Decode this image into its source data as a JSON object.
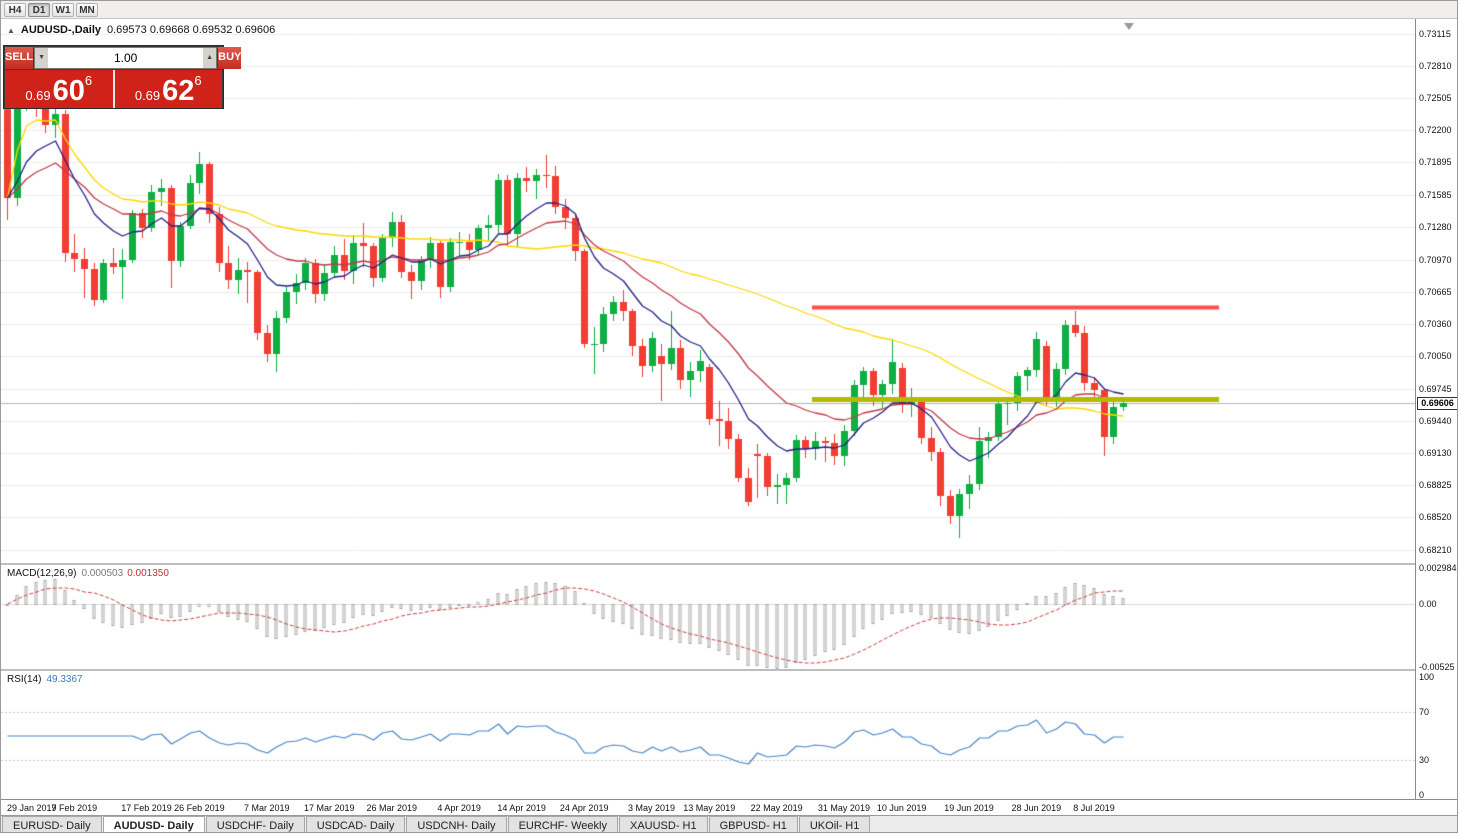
{
  "toolbar": {
    "timeframes": [
      "H4",
      "D1",
      "W1",
      "MN"
    ],
    "active": "D1"
  },
  "chart_header": {
    "symbol": "AUDUSD-,Daily",
    "ohlc": "0.69573 0.69668 0.69532 0.69606"
  },
  "icons": {
    "panel_toggle": "▲",
    "volume_down": "▼",
    "volume_up": "▲"
  },
  "trade_panel": {
    "sell_label": "SELL",
    "buy_label": "BUY",
    "volume": "1.00",
    "sell_price": {
      "prefix": "0.69",
      "pips": "60",
      "pipette": "6"
    },
    "buy_price": {
      "prefix": "0.69",
      "pips": "62",
      "pipette": "6"
    }
  },
  "price_axis": [
    "0.73115",
    "0.72810",
    "0.72505",
    "0.72200",
    "0.71895",
    "0.71585",
    "0.71280",
    "0.70970",
    "0.70665",
    "0.70360",
    "0.70050",
    "0.69745",
    "0.69440",
    "0.69130",
    "0.68825",
    "0.68520",
    "0.68210"
  ],
  "macd": {
    "name": "MACD(12,26,9)",
    "value": "0.000503",
    "signal_value": "0.001350",
    "axis": [
      "0.002984",
      "0.00",
      "-0.00525"
    ],
    "histogram_color": "#a9a9a9",
    "signal_color": "#cc4444",
    "params": {
      "fast": 12,
      "slow": 26,
      "signal": 9
    }
  },
  "rsi": {
    "name": "RSI(14)",
    "value": "49.3367",
    "period": 14,
    "axis": [
      "100",
      "70",
      "30",
      "0"
    ],
    "levels": [
      70,
      30
    ],
    "line_color": "#4a86c8"
  },
  "date_axis": [
    {
      "label": "29 Jan 2019",
      "i": 0
    },
    {
      "label": "7 Feb 2019",
      "i": 7
    },
    {
      "label": "17 Feb 2019",
      "i": 14.5
    },
    {
      "label": "26 Feb 2019",
      "i": 20
    },
    {
      "label": "7 Mar 2019",
      "i": 27
    },
    {
      "label": "17 Mar 2019",
      "i": 33.5
    },
    {
      "label": "26 Mar 2019",
      "i": 40
    },
    {
      "label": "4 Apr 2019",
      "i": 47
    },
    {
      "label": "14 Apr 2019",
      "i": 53.5
    },
    {
      "label": "24 Apr 2019",
      "i": 60
    },
    {
      "label": "3 May 2019",
      "i": 67
    },
    {
      "label": "13 May 2019",
      "i": 73
    },
    {
      "label": "22 May 2019",
      "i": 80
    },
    {
      "label": "31 May 2019",
      "i": 87
    },
    {
      "label": "10 Jun 2019",
      "i": 93
    },
    {
      "label": "19 Jun 2019",
      "i": 100
    },
    {
      "label": "28 Jun 2019",
      "i": 107
    },
    {
      "label": "8 Jul 2019",
      "i": 113
    }
  ],
  "tabs": [
    {
      "label": "EURUSD- Daily",
      "active": false
    },
    {
      "label": "AUDUSD- Daily",
      "active": true
    },
    {
      "label": "USDCHF- Daily",
      "active": false
    },
    {
      "label": "USDCAD- Daily",
      "active": false
    },
    {
      "label": "USDCNH- Daily",
      "active": false
    },
    {
      "label": "EURCHF- Weekly",
      "active": false
    },
    {
      "label": "XAUUSD- H1",
      "active": false
    },
    {
      "label": "GBPUSD- H1",
      "active": false
    },
    {
      "label": "UKOil- H1",
      "active": false
    }
  ],
  "chart_data": {
    "type": "candlestick",
    "symbol": "AUDUSD",
    "period": "Daily",
    "current_price": "0.69606",
    "ylim": [
      0.6821,
      0.73115
    ],
    "colors": {
      "up": "#0fae43",
      "down": "#f23d32",
      "grid": "#ededed",
      "current_price_line": "#b5b5b5"
    },
    "moving_averages": [
      {
        "method": "SMA",
        "period": 50,
        "color": "#ffd800"
      },
      {
        "method": "EMA",
        "period": 21,
        "color": "#c23b4b"
      },
      {
        "method": "EMA",
        "period": 10,
        "color": "#232387"
      }
    ],
    "lines": [
      {
        "name": "resistance",
        "price": 0.7052,
        "color": "#ff4d4d",
        "width": 4,
        "from_index": 84,
        "to_index": 126
      },
      {
        "name": "support",
        "price": 0.6965,
        "color": "#b3ba00",
        "width": 5,
        "from_index": 84,
        "to_index": 126
      }
    ],
    "candles": [
      [
        0.724,
        0.7245,
        0.7135,
        0.71554
      ],
      [
        0.71554,
        0.725,
        0.7148,
        0.72473
      ],
      [
        0.72473,
        0.729,
        0.7238,
        0.72697
      ],
      [
        0.72697,
        0.7272,
        0.7233,
        0.72458
      ],
      [
        0.72458,
        0.7253,
        0.7217,
        0.72251
      ],
      [
        0.72251,
        0.7243,
        0.7213,
        0.72357
      ],
      [
        0.72357,
        0.7239,
        0.7095,
        0.7103
      ],
      [
        0.7103,
        0.7121,
        0.7085,
        0.7098
      ],
      [
        0.7098,
        0.7108,
        0.7061,
        0.70882
      ],
      [
        0.70882,
        0.7094,
        0.7053,
        0.70591
      ],
      [
        0.70591,
        0.7098,
        0.7056,
        0.70936
      ],
      [
        0.70936,
        0.7108,
        0.7083,
        0.70899
      ],
      [
        0.70899,
        0.7107,
        0.706,
        0.70969
      ],
      [
        0.70969,
        0.7144,
        0.7094,
        0.71411
      ],
      [
        0.71411,
        0.7145,
        0.7118,
        0.71273
      ],
      [
        0.71273,
        0.7168,
        0.7123,
        0.71612
      ],
      [
        0.71612,
        0.7174,
        0.7148,
        0.71649
      ],
      [
        0.71649,
        0.7168,
        0.707,
        0.70953
      ],
      [
        0.70953,
        0.7133,
        0.709,
        0.71288
      ],
      [
        0.71288,
        0.7177,
        0.7126,
        0.71698
      ],
      [
        0.71698,
        0.71996,
        0.7159,
        0.71876
      ],
      [
        0.71876,
        0.719,
        0.7132,
        0.714
      ],
      [
        0.714,
        0.7147,
        0.7085,
        0.70937
      ],
      [
        0.70937,
        0.711,
        0.7069,
        0.70773
      ],
      [
        0.70773,
        0.7099,
        0.7064,
        0.70872
      ],
      [
        0.70872,
        0.7095,
        0.7056,
        0.70853
      ],
      [
        0.70853,
        0.7087,
        0.7021,
        0.70269
      ],
      [
        0.70269,
        0.7035,
        0.7,
        0.70071
      ],
      [
        0.70071,
        0.7048,
        0.699,
        0.70413
      ],
      [
        0.70413,
        0.7071,
        0.7037,
        0.70664
      ],
      [
        0.70664,
        0.7083,
        0.7055,
        0.70751
      ],
      [
        0.70751,
        0.7099,
        0.7068,
        0.7094
      ],
      [
        0.7094,
        0.7098,
        0.7056,
        0.7064
      ],
      [
        0.7064,
        0.7093,
        0.7058,
        0.70847
      ],
      [
        0.70847,
        0.711,
        0.708,
        0.71018
      ],
      [
        0.71018,
        0.7117,
        0.7078,
        0.70866
      ],
      [
        0.70866,
        0.712,
        0.7074,
        0.71127
      ],
      [
        0.71127,
        0.7132,
        0.709,
        0.71096
      ],
      [
        0.71096,
        0.7113,
        0.7071,
        0.70797
      ],
      [
        0.70797,
        0.7121,
        0.7076,
        0.71176
      ],
      [
        0.71176,
        0.7142,
        0.7109,
        0.71327
      ],
      [
        0.71327,
        0.7139,
        0.708,
        0.70848
      ],
      [
        0.70848,
        0.7092,
        0.706,
        0.70764
      ],
      [
        0.70764,
        0.71,
        0.7068,
        0.70962
      ],
      [
        0.70962,
        0.7119,
        0.7089,
        0.7113
      ],
      [
        0.7113,
        0.7115,
        0.7061,
        0.70714
      ],
      [
        0.70714,
        0.7118,
        0.7066,
        0.71138
      ],
      [
        0.71138,
        0.7123,
        0.7101,
        0.71141
      ],
      [
        0.71141,
        0.7121,
        0.7097,
        0.71062
      ],
      [
        0.71062,
        0.713,
        0.7101,
        0.7127
      ],
      [
        0.7127,
        0.7139,
        0.7115,
        0.71302
      ],
      [
        0.71302,
        0.7178,
        0.7121,
        0.71729
      ],
      [
        0.71729,
        0.7177,
        0.711,
        0.7121
      ],
      [
        0.7121,
        0.7179,
        0.7109,
        0.71742
      ],
      [
        0.71742,
        0.7185,
        0.7161,
        0.71715
      ],
      [
        0.71715,
        0.7183,
        0.7155,
        0.7177
      ],
      [
        0.7177,
        0.71964,
        0.7165,
        0.71768
      ],
      [
        0.71768,
        0.7186,
        0.714,
        0.71471
      ],
      [
        0.71471,
        0.7155,
        0.7126,
        0.71362
      ],
      [
        0.71362,
        0.714,
        0.7096,
        0.71052
      ],
      [
        0.71052,
        0.7107,
        0.7013,
        0.70166
      ],
      [
        0.70166,
        0.7033,
        0.6988,
        0.70168
      ],
      [
        0.70168,
        0.7052,
        0.7009,
        0.7045
      ],
      [
        0.7045,
        0.7062,
        0.7039,
        0.70568
      ],
      [
        0.70568,
        0.7068,
        0.7039,
        0.7048
      ],
      [
        0.7048,
        0.705,
        0.7005,
        0.7015
      ],
      [
        0.7015,
        0.7022,
        0.6985,
        0.69962
      ],
      [
        0.69962,
        0.7028,
        0.699,
        0.70221
      ],
      [
        0.7005,
        0.7017,
        0.6963,
        0.69978
      ],
      [
        0.69978,
        0.7048,
        0.6992,
        0.70128
      ],
      [
        0.70128,
        0.7021,
        0.6974,
        0.6983
      ],
      [
        0.6983,
        0.7,
        0.6966,
        0.69908
      ],
      [
        0.69908,
        0.7011,
        0.6981,
        0.70007
      ],
      [
        0.6995,
        0.6998,
        0.694,
        0.69458
      ],
      [
        0.69458,
        0.6963,
        0.692,
        0.69432
      ],
      [
        0.69432,
        0.6956,
        0.6917,
        0.69266
      ],
      [
        0.69266,
        0.6931,
        0.6886,
        0.68899
      ],
      [
        0.68899,
        0.6899,
        0.6863,
        0.68662
      ],
      [
        0.6912,
        0.6922,
        0.687,
        0.691
      ],
      [
        0.691,
        0.6913,
        0.6872,
        0.6881
      ],
      [
        0.6881,
        0.6893,
        0.6865,
        0.68825
      ],
      [
        0.68825,
        0.6894,
        0.6865,
        0.6889
      ],
      [
        0.6889,
        0.693,
        0.6886,
        0.69258
      ],
      [
        0.69258,
        0.6929,
        0.6908,
        0.69174
      ],
      [
        0.69174,
        0.6933,
        0.6907,
        0.69245
      ],
      [
        0.69245,
        0.6928,
        0.6905,
        0.69227
      ],
      [
        0.69227,
        0.6931,
        0.6902,
        0.69108
      ],
      [
        0.69108,
        0.694,
        0.6901,
        0.69339
      ],
      [
        0.69339,
        0.6983,
        0.6929,
        0.69779
      ],
      [
        0.69779,
        0.6995,
        0.6965,
        0.69916
      ],
      [
        0.69916,
        0.6994,
        0.6958,
        0.6968
      ],
      [
        0.6968,
        0.6983,
        0.6956,
        0.69785
      ],
      [
        0.69785,
        0.7022,
        0.6969,
        0.69994
      ],
      [
        0.6994,
        0.6999,
        0.6951,
        0.69599
      ],
      [
        0.69599,
        0.6975,
        0.6947,
        0.69615
      ],
      [
        0.69615,
        0.6966,
        0.6922,
        0.6927
      ],
      [
        0.6927,
        0.6938,
        0.6906,
        0.69138
      ],
      [
        0.69138,
        0.6918,
        0.6863,
        0.68722
      ],
      [
        0.68722,
        0.6878,
        0.6846,
        0.68531
      ],
      [
        0.68531,
        0.6879,
        0.68325,
        0.68747
      ],
      [
        0.68747,
        0.6892,
        0.686,
        0.6884
      ],
      [
        0.6884,
        0.6938,
        0.6878,
        0.69249
      ],
      [
        0.69249,
        0.6933,
        0.6908,
        0.6928
      ],
      [
        0.6928,
        0.6964,
        0.6925,
        0.69598
      ],
      [
        0.69598,
        0.6966,
        0.694,
        0.6961
      ],
      [
        0.6961,
        0.699,
        0.6953,
        0.69866
      ],
      [
        0.69866,
        0.6995,
        0.6972,
        0.6992
      ],
      [
        0.6992,
        0.7028,
        0.6985,
        0.70215
      ],
      [
        0.7015,
        0.702,
        0.6958,
        0.69662
      ],
      [
        0.69662,
        0.6999,
        0.6957,
        0.69931
      ],
      [
        0.69931,
        0.704,
        0.6987,
        0.70345
      ],
      [
        0.70345,
        0.70482,
        0.7023,
        0.70275
      ],
      [
        0.70275,
        0.7034,
        0.6972,
        0.69797
      ],
      [
        0.69797,
        0.6985,
        0.6962,
        0.69732
      ],
      [
        0.69732,
        0.6974,
        0.69103,
        0.69282
      ],
      [
        0.69282,
        0.69652,
        0.69218,
        0.69573
      ],
      [
        0.69573,
        0.69668,
        0.69532,
        0.69606
      ]
    ]
  }
}
